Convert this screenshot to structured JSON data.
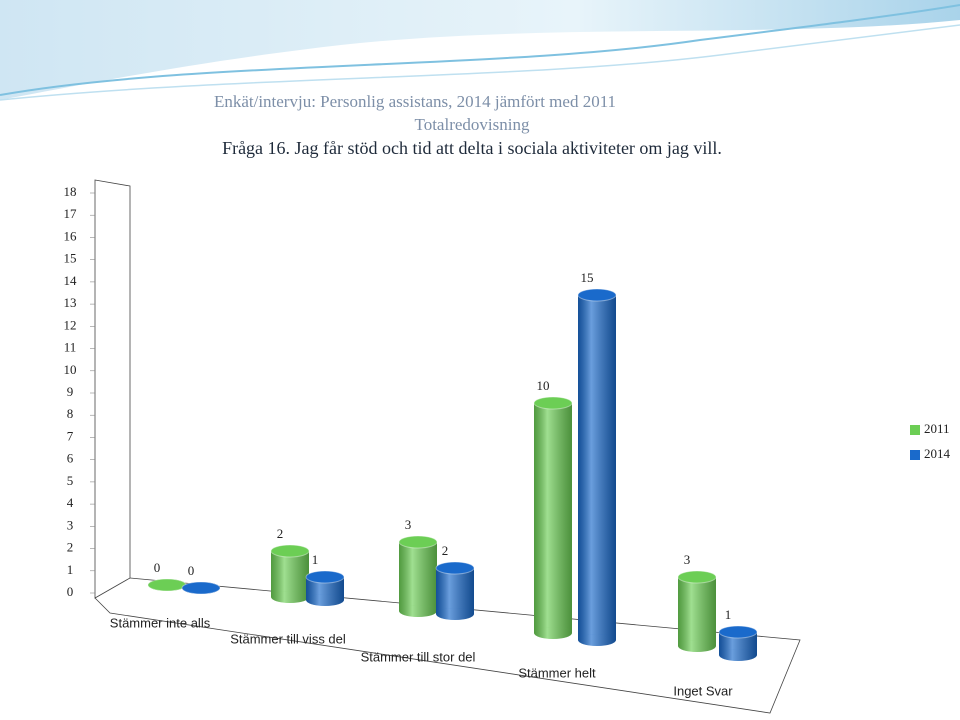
{
  "chart_data": {
    "type": "bar3d",
    "title": "Enkät/intervju: Personlig assistans, 2014 jämfört med 2011",
    "subtitle": "Totalredovisning",
    "question": "Fråga 16. Jag får stöd och tid att delta i sociala aktiviteter om jag vill.",
    "categories": [
      "Stämmer inte alls",
      "Stämmer till viss del",
      "Stämmer till stor del",
      "Stämmer helt",
      "Inget Svar"
    ],
    "series": [
      {
        "name": "2011",
        "color": "#6cce55",
        "values": [
          0,
          2,
          3,
          10,
          3
        ]
      },
      {
        "name": "2014",
        "color": "#1a6acb",
        "values": [
          0,
          1,
          2,
          15,
          1
        ]
      }
    ],
    "ylim": [
      0,
      18
    ],
    "yticks": [
      0,
      1,
      2,
      3,
      4,
      5,
      6,
      7,
      8,
      9,
      10,
      11,
      12,
      13,
      14,
      15,
      16,
      17,
      18
    ],
    "grid": false,
    "legend": "right"
  }
}
